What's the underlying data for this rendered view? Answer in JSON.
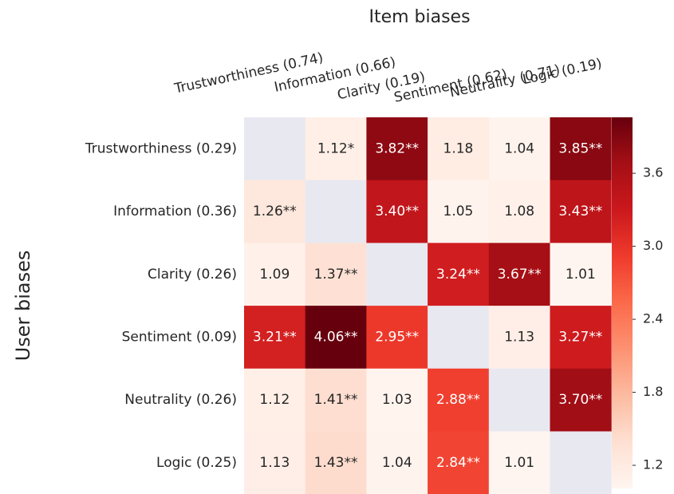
{
  "chart_data": {
    "type": "heatmap",
    "title": "Item biases",
    "y_label": "User biases",
    "columns": [
      "Trustworthiness (0.74)",
      "Information (0.66)",
      "Clarity (0.19)",
      "Sentiment (0.62)",
      "Neutrality (0.71)",
      "Logic (0.19)"
    ],
    "rows": [
      "Trustworthiness (0.29)",
      "Information (0.36)",
      "Clarity (0.26)",
      "Sentiment (0.09)",
      "Neutrality (0.26)",
      "Logic (0.25)"
    ],
    "values": [
      [
        null,
        1.12,
        3.82,
        1.18,
        1.04,
        3.85
      ],
      [
        1.26,
        null,
        3.4,
        1.05,
        1.08,
        3.43
      ],
      [
        1.09,
        1.37,
        null,
        3.24,
        3.67,
        1.01
      ],
      [
        3.21,
        4.06,
        2.95,
        null,
        1.13,
        3.27
      ],
      [
        1.12,
        1.41,
        1.03,
        2.88,
        null,
        3.7
      ],
      [
        1.13,
        1.43,
        1.04,
        2.84,
        1.01,
        null
      ]
    ],
    "value_labels": [
      [
        null,
        "1.12*",
        "3.82**",
        "1.18",
        "1.04",
        "3.85**"
      ],
      [
        "1.26**",
        null,
        "3.40**",
        "1.05",
        "1.08",
        "3.43**"
      ],
      [
        "1.09",
        "1.37**",
        null,
        "3.24**",
        "3.67**",
        "1.01"
      ],
      [
        "3.21**",
        "4.06**",
        "2.95**",
        null,
        "1.13",
        "3.27**"
      ],
      [
        "1.12",
        "1.41**",
        "1.03",
        "2.88**",
        null,
        "3.70**"
      ],
      [
        "1.13",
        "1.43**",
        "1.04",
        "2.84**",
        "1.01",
        null
      ]
    ],
    "clim": [
      1.01,
      4.06
    ],
    "cticks": [
      1.2,
      1.8,
      2.4,
      3.0,
      3.6
    ],
    "colors": [
      "#fff5f0",
      "#fee0d2",
      "#fcbba1",
      "#fc9272",
      "#fb6a4a",
      "#ef3b2c",
      "#cb181d",
      "#a50f15",
      "#67000d"
    ],
    "missing_color": "#e8e8f1"
  }
}
